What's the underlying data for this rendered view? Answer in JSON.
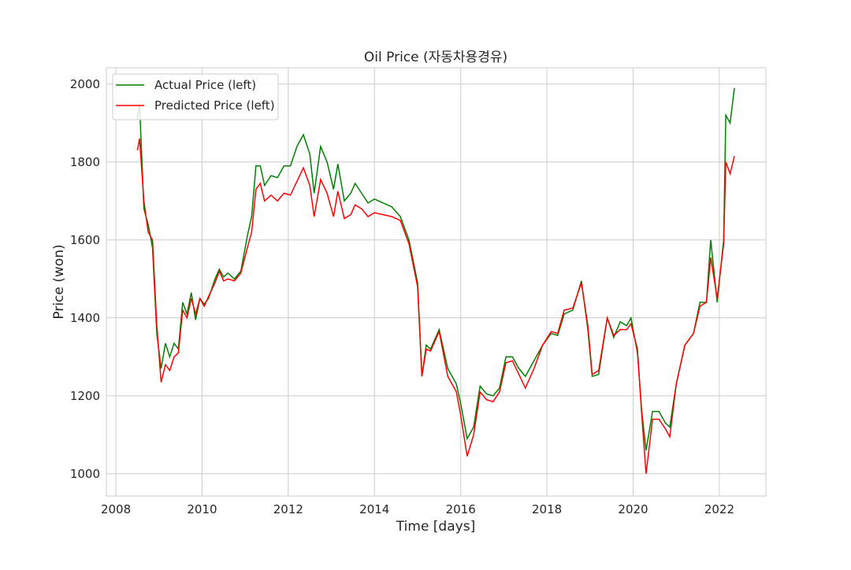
{
  "chart_data": {
    "type": "line",
    "title": "Oil Price (자동차용경유)",
    "xlabel": "Time [days]",
    "ylabel": "Price (won)",
    "xlim": [
      2007.78,
      2023.08
    ],
    "ylim": [
      943,
      2042
    ],
    "xticks": [
      2008,
      2010,
      2012,
      2014,
      2016,
      2018,
      2020,
      2022
    ],
    "yticks": [
      1000,
      1200,
      1400,
      1600,
      1800,
      2000
    ],
    "grid": true,
    "legend": "upper left",
    "x": [
      2008.5,
      2008.55,
      2008.65,
      2008.75,
      2008.85,
      2008.95,
      2009.05,
      2009.15,
      2009.25,
      2009.35,
      2009.45,
      2009.55,
      2009.65,
      2009.75,
      2009.85,
      2009.95,
      2010.05,
      2010.15,
      2010.3,
      2010.4,
      2010.5,
      2010.6,
      2010.75,
      2010.9,
      2011.05,
      2011.15,
      2011.25,
      2011.35,
      2011.45,
      2011.6,
      2011.75,
      2011.9,
      2012.05,
      2012.2,
      2012.35,
      2012.5,
      2012.6,
      2012.75,
      2012.9,
      2013.05,
      2013.15,
      2013.3,
      2013.45,
      2013.55,
      2013.7,
      2013.85,
      2014.0,
      2014.2,
      2014.4,
      2014.6,
      2014.8,
      2015.0,
      2015.1,
      2015.2,
      2015.3,
      2015.5,
      2015.7,
      2015.9,
      2016.0,
      2016.15,
      2016.3,
      2016.45,
      2016.6,
      2016.75,
      2016.9,
      2017.05,
      2017.2,
      2017.35,
      2017.5,
      2017.7,
      2017.9,
      2018.1,
      2018.25,
      2018.4,
      2018.6,
      2018.8,
      2018.95,
      2019.05,
      2019.2,
      2019.4,
      2019.55,
      2019.7,
      2019.85,
      2019.95,
      2020.1,
      2020.2,
      2020.3,
      2020.45,
      2020.6,
      2020.75,
      2020.85,
      2021.0,
      2021.2,
      2021.4,
      2021.55,
      2021.7,
      2021.8,
      2021.95,
      2022.1,
      2022.15,
      2022.25,
      2022.35
    ],
    "series": [
      {
        "name": "Actual Price (left)",
        "color": "#008000",
        "values": [
          1910,
          1950,
          1680,
          1640,
          1580,
          1360,
          1270,
          1335,
          1300,
          1335,
          1320,
          1440,
          1410,
          1465,
          1395,
          1450,
          1435,
          1450,
          1500,
          1525,
          1505,
          1515,
          1500,
          1520,
          1610,
          1660,
          1790,
          1790,
          1740,
          1765,
          1760,
          1790,
          1790,
          1840,
          1870,
          1820,
          1720,
          1840,
          1800,
          1730,
          1795,
          1700,
          1720,
          1745,
          1720,
          1695,
          1705,
          1695,
          1685,
          1660,
          1600,
          1490,
          1250,
          1330,
          1320,
          1370,
          1270,
          1230,
          1180,
          1090,
          1120,
          1225,
          1205,
          1200,
          1220,
          1300,
          1300,
          1270,
          1250,
          1290,
          1330,
          1360,
          1355,
          1410,
          1420,
          1495,
          1370,
          1250,
          1255,
          1400,
          1350,
          1390,
          1380,
          1400,
          1310,
          1160,
          1060,
          1160,
          1160,
          1130,
          1120,
          1230,
          1330,
          1360,
          1440,
          1440,
          1600,
          1440,
          1600,
          1920,
          1900,
          1990
        ]
      },
      {
        "name": "Predicted Price (left)",
        "color": "#ff0000",
        "values": [
          1830,
          1860,
          1700,
          1620,
          1600,
          1380,
          1235,
          1280,
          1265,
          1300,
          1310,
          1420,
          1400,
          1450,
          1410,
          1450,
          1430,
          1455,
          1490,
          1520,
          1495,
          1500,
          1495,
          1515,
          1580,
          1620,
          1730,
          1745,
          1700,
          1715,
          1700,
          1720,
          1715,
          1750,
          1785,
          1740,
          1660,
          1755,
          1720,
          1660,
          1725,
          1655,
          1665,
          1690,
          1680,
          1660,
          1670,
          1665,
          1660,
          1650,
          1590,
          1480,
          1250,
          1320,
          1315,
          1365,
          1250,
          1210,
          1150,
          1045,
          1100,
          1210,
          1190,
          1185,
          1210,
          1285,
          1290,
          1255,
          1220,
          1270,
          1330,
          1365,
          1360,
          1420,
          1425,
          1490,
          1380,
          1255,
          1265,
          1400,
          1355,
          1370,
          1370,
          1385,
          1320,
          1150,
          1000,
          1140,
          1140,
          1115,
          1095,
          1230,
          1330,
          1360,
          1430,
          1440,
          1555,
          1450,
          1590,
          1800,
          1770,
          1815
        ]
      }
    ]
  }
}
